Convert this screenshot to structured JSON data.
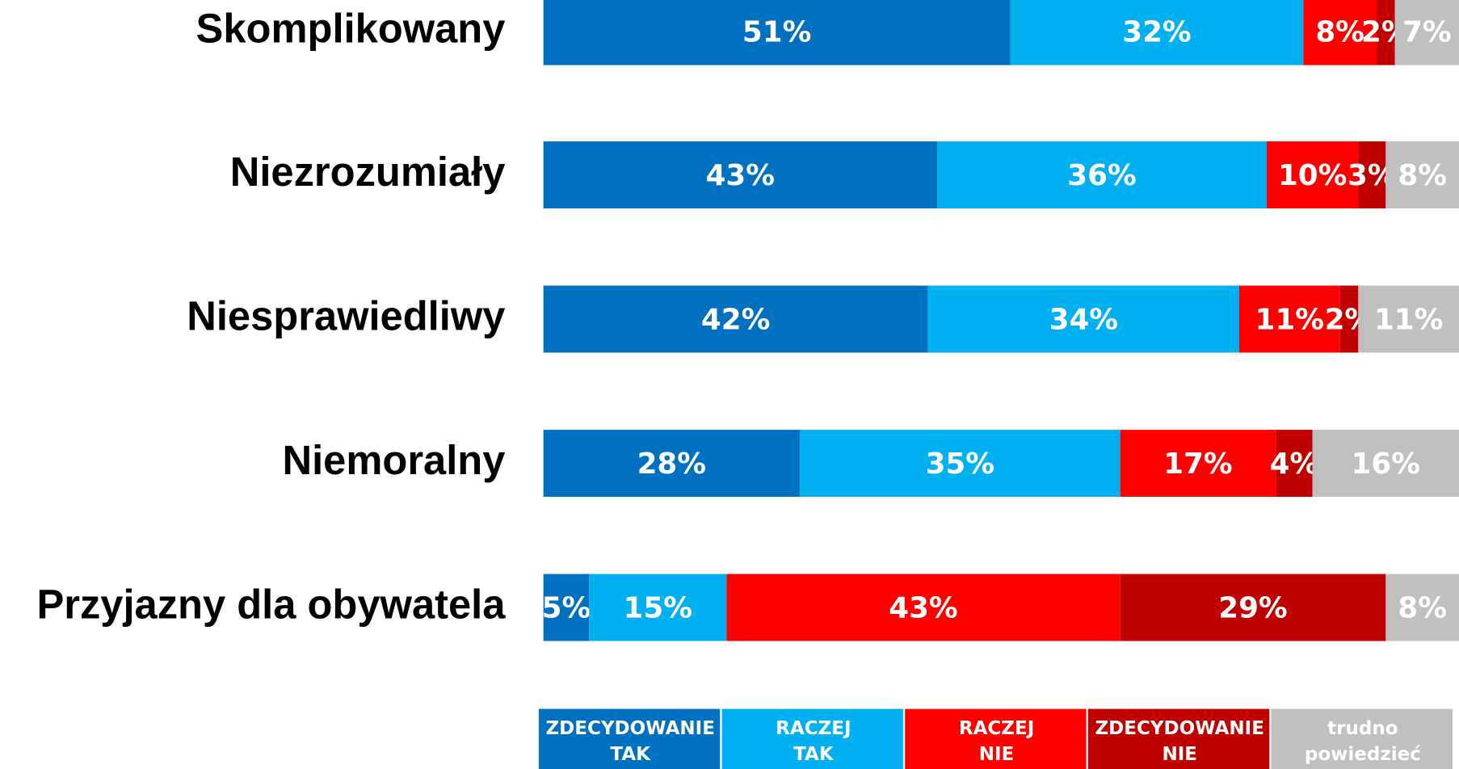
{
  "chart_data": {
    "type": "stacked_bar_horizontal",
    "categories": [
      "Skomplikowany",
      "Niezrozumiały",
      "Niesprawiedliwy",
      "Niemoralny",
      "Przyjazny dla obywatela"
    ],
    "xlim": [
      0,
      100
    ],
    "series": [
      {
        "name": "ZDECYDOWANIE TAK",
        "color": "#0070c0",
        "values": [
          51,
          43,
          42,
          28,
          5
        ],
        "value_labels": [
          "51%",
          "43%",
          "42%",
          "28%",
          "5%"
        ]
      },
      {
        "name": "RACZEJ TAK",
        "color": "#00b0f0",
        "values": [
          32,
          36,
          34,
          35,
          15
        ],
        "value_labels": [
          "32%",
          "36%",
          "34%",
          "35%",
          "15%"
        ]
      },
      {
        "name": "RACZEJ NIE",
        "color": "#ff0000",
        "values": [
          8,
          10,
          11,
          17,
          43
        ],
        "value_labels": [
          "8%",
          "10%",
          "11%",
          "17%",
          "43%"
        ]
      },
      {
        "name": "ZDECYDOWANIE NIE",
        "color": "#c00000",
        "values": [
          2,
          3,
          2,
          4,
          29
        ],
        "value_labels": [
          "2%",
          "3%",
          "2%",
          "4%",
          "29%"
        ]
      },
      {
        "name": "trudno powiedzieć",
        "color": "#bfbfbf",
        "values": [
          7,
          8,
          11,
          16,
          8
        ],
        "value_labels": [
          "7%",
          "8%",
          "11%",
          "16%",
          "8%"
        ]
      }
    ]
  }
}
